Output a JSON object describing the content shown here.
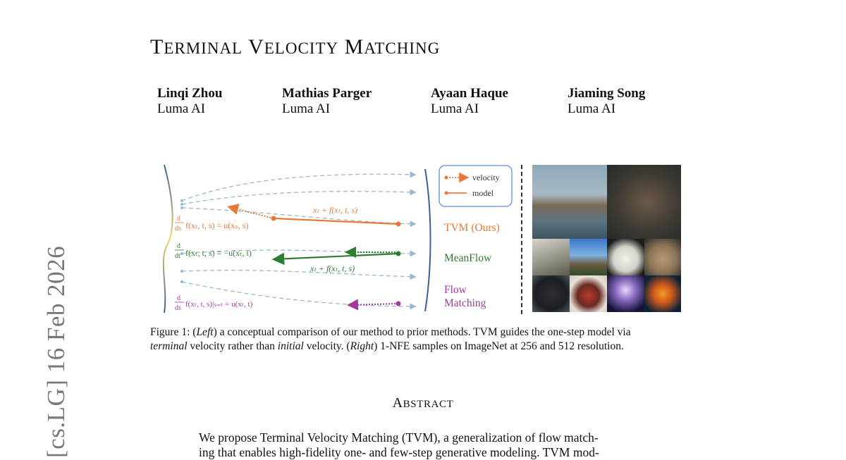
{
  "arxiv_stamp": "[cs.LG]  16 Feb 2026",
  "title": {
    "word1_cap": "T",
    "word1_rest": "ERMINAL",
    "word2_cap": "V",
    "word2_rest": "ELOCITY",
    "word3_cap": "M",
    "word3_rest": "ATCHING"
  },
  "authors": [
    {
      "name": "Linqi Zhou",
      "affiliation": "Luma AI"
    },
    {
      "name": "Mathias Parger",
      "affiliation": "Luma AI"
    },
    {
      "name": "Ayaan Haque",
      "affiliation": "Luma AI"
    },
    {
      "name": "Jiaming Song",
      "affiliation": "Luma AI"
    }
  ],
  "figure": {
    "legend": {
      "velocity": "velocity",
      "model": "model"
    },
    "methods": {
      "tvm": "TVM (Ours)",
      "meanflow": "MeanFlow",
      "flow_line1": "Flow",
      "flow_line2": "Matching"
    },
    "equations": {
      "tvm_top": "xₜ + f(xₜ, t, s)",
      "tvm_left_lhs": "f(xₜ, t, s) = u(xₛ, s)",
      "mf_left_lhs": "f(xₜ, t, s) = −u(xₜ, t)",
      "mf_bottom": "xₜ + f(xₜ, t, s)",
      "fm_left_lhs": "f(xₜ, t, s)|ₛ₌ₜ = u(xₜ, t)",
      "d": "d",
      "ds": "ds",
      "dt": "dt"
    },
    "colors": {
      "tvm": "#e8793a",
      "meanflow": "#2e7d32",
      "flow": "#a13a9c",
      "dashed": "#9ab8cc",
      "legend_border": "#5b8fd6"
    },
    "sample_icons": [
      "sandpiper-photo",
      "otter-photo",
      "stork-photo",
      "mountain-photo",
      "polar-bear-photo",
      "meerkat-photo",
      "chimpanzee-photo",
      "beetle-photo",
      "jellyfish-photo",
      "goldfish-photo"
    ]
  },
  "caption": {
    "label": "Figure 1: (",
    "left": "Left",
    "part1": ") a conceptual comparison of our method to prior methods. TVM guides the one-step model via",
    "terminal": "terminal",
    "part2": " velocity rather than ",
    "initial": "initial",
    "part3": " velocity. (",
    "right": "Right",
    "part4": ") 1-NFE samples on ImageNet at 256 and 512 resolution."
  },
  "abstract": {
    "title_cap": "A",
    "title_rest": "BSTRACT",
    "line1": "We propose Terminal Velocity Matching (TVM), a generalization of flow match-",
    "line2": "ing that enables high-fidelity one- and few-step generative modeling. TVM mod-"
  }
}
